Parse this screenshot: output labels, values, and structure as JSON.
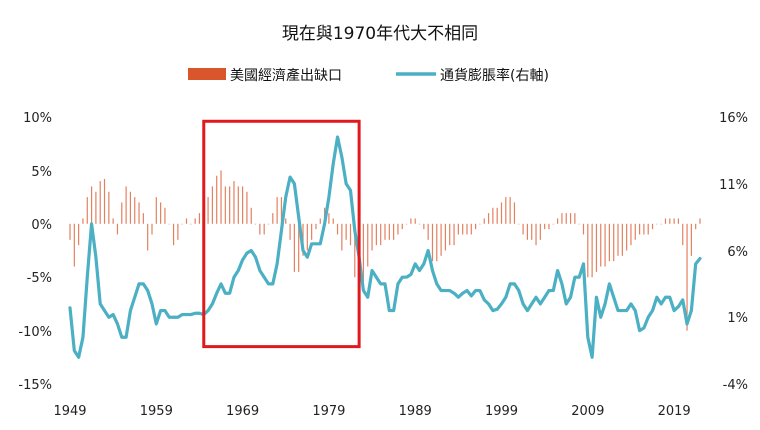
{
  "chart_data": {
    "type": "bar+line",
    "title": "現在與1970年代大不相同",
    "legend": [
      {
        "name": "美國經濟產出缺口",
        "mark": "bar",
        "color": "#d9552b"
      },
      {
        "name": "通貨膨脹率(右軸)",
        "mark": "line",
        "color": "#4bb0c4"
      }
    ],
    "legend_position": "top-center",
    "grid": false,
    "left_axis": {
      "ylim": [
        -15,
        10
      ],
      "ticks": [
        "10%",
        "5%",
        "0%",
        "-5%",
        "-10%",
        "-15%"
      ],
      "tick_values": [
        10,
        5,
        0,
        -5,
        -10,
        -15
      ]
    },
    "right_axis": {
      "ylim": [
        -4,
        16
      ],
      "ticks": [
        "16%",
        "11%",
        "6%",
        "1%",
        "-4%"
      ],
      "tick_values": [
        16,
        11,
        6,
        1,
        -4
      ]
    },
    "x_axis": {
      "range": [
        1949,
        2022
      ],
      "ticks": [
        "1949",
        "1959",
        "1969",
        "1979",
        "1989",
        "1999",
        "2009",
        "2019"
      ],
      "tick_values": [
        1949,
        1959,
        1969,
        1979,
        1989,
        1999,
        2009,
        2019
      ]
    },
    "highlight_box": {
      "x_range": [
        1964.5,
        1982.5
      ],
      "y_range_left": [
        -11.5,
        9.6
      ],
      "color": "#e0191e"
    },
    "series": [
      {
        "name": "美國經濟產出缺口",
        "type": "bar",
        "axis": "left",
        "points": [
          [
            1949.0,
            -1.5
          ],
          [
            1949.5,
            -4.0
          ],
          [
            1950.0,
            -2.0
          ],
          [
            1950.5,
            0.5
          ],
          [
            1951.0,
            2.5
          ],
          [
            1951.5,
            3.5
          ],
          [
            1952.0,
            3.0
          ],
          [
            1952.5,
            4.0
          ],
          [
            1953.0,
            4.2
          ],
          [
            1953.5,
            3.0
          ],
          [
            1954.0,
            0.5
          ],
          [
            1954.5,
            -1.0
          ],
          [
            1955.0,
            2.0
          ],
          [
            1955.5,
            3.5
          ],
          [
            1956.0,
            3.0
          ],
          [
            1956.5,
            2.5
          ],
          [
            1957.0,
            2.0
          ],
          [
            1957.5,
            1.0
          ],
          [
            1958.0,
            -2.5
          ],
          [
            1958.5,
            -1.0
          ],
          [
            1959.0,
            2.5
          ],
          [
            1959.5,
            2.0
          ],
          [
            1960.0,
            1.5
          ],
          [
            1960.5,
            0.0
          ],
          [
            1961.0,
            -2.0
          ],
          [
            1961.5,
            -1.5
          ],
          [
            1962.0,
            0.0
          ],
          [
            1962.5,
            0.5
          ],
          [
            1963.0,
            0.0
          ],
          [
            1963.5,
            0.5
          ],
          [
            1964.0,
            1.0
          ],
          [
            1964.5,
            1.5
          ],
          [
            1965.0,
            2.5
          ],
          [
            1965.5,
            3.5
          ],
          [
            1966.0,
            4.5
          ],
          [
            1966.5,
            5.0
          ],
          [
            1967.0,
            3.5
          ],
          [
            1967.5,
            3.5
          ],
          [
            1968.0,
            4.0
          ],
          [
            1968.5,
            3.5
          ],
          [
            1969.0,
            3.5
          ],
          [
            1969.5,
            3.0
          ],
          [
            1970.0,
            1.5
          ],
          [
            1970.5,
            0.0
          ],
          [
            1971.0,
            -1.0
          ],
          [
            1971.5,
            -1.0
          ],
          [
            1972.0,
            0.0
          ],
          [
            1972.5,
            1.0
          ],
          [
            1973.0,
            2.5
          ],
          [
            1973.5,
            2.5
          ],
          [
            1974.0,
            0.5
          ],
          [
            1974.5,
            -1.5
          ],
          [
            1975.0,
            -4.5
          ],
          [
            1975.5,
            -4.5
          ],
          [
            1976.0,
            -3.0
          ],
          [
            1976.5,
            -2.5
          ],
          [
            1977.0,
            -1.5
          ],
          [
            1977.5,
            -0.5
          ],
          [
            1978.0,
            0.5
          ],
          [
            1978.5,
            1.5
          ],
          [
            1979.0,
            1.0
          ],
          [
            1979.5,
            0.5
          ],
          [
            1980.0,
            -1.0
          ],
          [
            1980.5,
            -2.5
          ],
          [
            1981.0,
            -1.5
          ],
          [
            1981.5,
            -2.0
          ],
          [
            1982.0,
            -5.0
          ],
          [
            1982.5,
            -6.5
          ],
          [
            1983.0,
            -5.5
          ],
          [
            1983.5,
            -4.0
          ],
          [
            1984.0,
            -2.5
          ],
          [
            1984.5,
            -2.0
          ],
          [
            1985.0,
            -2.0
          ],
          [
            1985.5,
            -1.5
          ],
          [
            1986.0,
            -1.5
          ],
          [
            1986.5,
            -1.5
          ],
          [
            1987.0,
            -1.0
          ],
          [
            1987.5,
            -0.5
          ],
          [
            1988.0,
            0.0
          ],
          [
            1988.5,
            0.5
          ],
          [
            1989.0,
            0.5
          ],
          [
            1989.5,
            0.0
          ],
          [
            1990.0,
            -0.5
          ],
          [
            1990.5,
            -1.5
          ],
          [
            1991.0,
            -3.5
          ],
          [
            1991.5,
            -3.5
          ],
          [
            1992.0,
            -3.0
          ],
          [
            1992.5,
            -2.5
          ],
          [
            1993.0,
            -2.0
          ],
          [
            1993.5,
            -2.0
          ],
          [
            1994.0,
            -1.0
          ],
          [
            1994.5,
            -1.0
          ],
          [
            1995.0,
            -1.0
          ],
          [
            1995.5,
            -1.0
          ],
          [
            1996.0,
            -0.5
          ],
          [
            1996.5,
            0.0
          ],
          [
            1997.0,
            0.5
          ],
          [
            1997.5,
            1.0
          ],
          [
            1998.0,
            1.5
          ],
          [
            1998.5,
            1.5
          ],
          [
            1999.0,
            2.0
          ],
          [
            1999.5,
            2.5
          ],
          [
            2000.0,
            2.5
          ],
          [
            2000.5,
            2.0
          ],
          [
            2001.0,
            0.0
          ],
          [
            2001.5,
            -1.0
          ],
          [
            2002.0,
            -1.5
          ],
          [
            2002.5,
            -1.5
          ],
          [
            2003.0,
            -2.0
          ],
          [
            2003.5,
            -1.5
          ],
          [
            2004.0,
            -0.5
          ],
          [
            2004.5,
            -0.5
          ],
          [
            2005.0,
            0.0
          ],
          [
            2005.5,
            0.5
          ],
          [
            2006.0,
            1.0
          ],
          [
            2006.5,
            1.0
          ],
          [
            2007.0,
            1.0
          ],
          [
            2007.5,
            1.0
          ],
          [
            2008.0,
            0.0
          ],
          [
            2008.5,
            -1.0
          ],
          [
            2009.0,
            -5.0
          ],
          [
            2009.5,
            -5.0
          ],
          [
            2010.0,
            -4.5
          ],
          [
            2010.5,
            -4.0
          ],
          [
            2011.0,
            -4.0
          ],
          [
            2011.5,
            -3.5
          ],
          [
            2012.0,
            -3.5
          ],
          [
            2012.5,
            -3.0
          ],
          [
            2013.0,
            -3.0
          ],
          [
            2013.5,
            -2.5
          ],
          [
            2014.0,
            -2.0
          ],
          [
            2014.5,
            -1.5
          ],
          [
            2015.0,
            -1.0
          ],
          [
            2015.5,
            -1.0
          ],
          [
            2016.0,
            -1.0
          ],
          [
            2016.5,
            -0.5
          ],
          [
            2017.0,
            0.0
          ],
          [
            2017.5,
            0.0
          ],
          [
            2018.0,
            0.5
          ],
          [
            2018.5,
            0.5
          ],
          [
            2019.0,
            0.5
          ],
          [
            2019.5,
            0.5
          ],
          [
            2020.0,
            -2.0
          ],
          [
            2020.5,
            -10.0
          ],
          [
            2021.0,
            -3.0
          ],
          [
            2021.5,
            -0.5
          ],
          [
            2022.0,
            0.5
          ]
        ]
      },
      {
        "name": "通貨膨脹率(右軸)",
        "type": "line",
        "axis": "right",
        "points": [
          [
            1949.0,
            1.7
          ],
          [
            1949.5,
            -1.5
          ],
          [
            1950.0,
            -2.0
          ],
          [
            1950.5,
            -0.5
          ],
          [
            1951.0,
            4.0
          ],
          [
            1951.5,
            8.0
          ],
          [
            1952.0,
            5.5
          ],
          [
            1952.5,
            2.0
          ],
          [
            1953.0,
            1.5
          ],
          [
            1953.5,
            1.0
          ],
          [
            1954.0,
            1.2
          ],
          [
            1954.5,
            0.5
          ],
          [
            1955.0,
            -0.5
          ],
          [
            1955.5,
            -0.5
          ],
          [
            1956.0,
            1.5
          ],
          [
            1956.5,
            2.5
          ],
          [
            1957.0,
            3.5
          ],
          [
            1957.5,
            3.5
          ],
          [
            1958.0,
            3.0
          ],
          [
            1958.5,
            2.0
          ],
          [
            1959.0,
            0.5
          ],
          [
            1959.5,
            1.5
          ],
          [
            1960.0,
            1.5
          ],
          [
            1960.5,
            1.0
          ],
          [
            1961.0,
            1.0
          ],
          [
            1961.5,
            1.0
          ],
          [
            1962.0,
            1.2
          ],
          [
            1962.5,
            1.2
          ],
          [
            1963.0,
            1.2
          ],
          [
            1963.5,
            1.3
          ],
          [
            1964.0,
            1.3
          ],
          [
            1964.5,
            1.2
          ],
          [
            1965.0,
            1.5
          ],
          [
            1965.5,
            2.0
          ],
          [
            1966.0,
            2.8
          ],
          [
            1966.5,
            3.5
          ],
          [
            1967.0,
            2.8
          ],
          [
            1967.5,
            2.8
          ],
          [
            1968.0,
            4.0
          ],
          [
            1968.5,
            4.5
          ],
          [
            1969.0,
            5.3
          ],
          [
            1969.5,
            5.8
          ],
          [
            1970.0,
            6.0
          ],
          [
            1970.5,
            5.5
          ],
          [
            1971.0,
            4.5
          ],
          [
            1971.5,
            4.0
          ],
          [
            1972.0,
            3.5
          ],
          [
            1972.5,
            3.5
          ],
          [
            1973.0,
            5.0
          ],
          [
            1973.5,
            7.5
          ],
          [
            1974.0,
            10.0
          ],
          [
            1974.5,
            11.5
          ],
          [
            1975.0,
            11.0
          ],
          [
            1975.5,
            8.5
          ],
          [
            1976.0,
            6.0
          ],
          [
            1976.5,
            5.5
          ],
          [
            1977.0,
            6.5
          ],
          [
            1977.5,
            6.5
          ],
          [
            1978.0,
            6.5
          ],
          [
            1978.5,
            8.0
          ],
          [
            1979.0,
            10.0
          ],
          [
            1979.5,
            12.5
          ],
          [
            1980.0,
            14.5
          ],
          [
            1980.5,
            13.0
          ],
          [
            1981.0,
            11.0
          ],
          [
            1981.5,
            10.5
          ],
          [
            1982.0,
            7.5
          ],
          [
            1982.5,
            5.5
          ],
          [
            1983.0,
            3.0
          ],
          [
            1983.5,
            2.5
          ],
          [
            1984.0,
            4.5
          ],
          [
            1984.5,
            4.0
          ],
          [
            1985.0,
            3.5
          ],
          [
            1985.5,
            3.5
          ],
          [
            1986.0,
            1.5
          ],
          [
            1986.5,
            1.5
          ],
          [
            1987.0,
            3.5
          ],
          [
            1987.5,
            4.0
          ],
          [
            1988.0,
            4.0
          ],
          [
            1988.5,
            4.2
          ],
          [
            1989.0,
            5.0
          ],
          [
            1989.5,
            4.5
          ],
          [
            1990.0,
            5.0
          ],
          [
            1990.5,
            6.0
          ],
          [
            1991.0,
            4.5
          ],
          [
            1991.5,
            3.5
          ],
          [
            1992.0,
            3.0
          ],
          [
            1992.5,
            3.0
          ],
          [
            1993.0,
            3.0
          ],
          [
            1993.5,
            2.8
          ],
          [
            1994.0,
            2.5
          ],
          [
            1994.5,
            2.8
          ],
          [
            1995.0,
            3.0
          ],
          [
            1995.5,
            2.6
          ],
          [
            1996.0,
            3.0
          ],
          [
            1996.5,
            3.0
          ],
          [
            1997.0,
            2.3
          ],
          [
            1997.5,
            2.0
          ],
          [
            1998.0,
            1.5
          ],
          [
            1998.5,
            1.6
          ],
          [
            1999.0,
            2.0
          ],
          [
            1999.5,
            2.5
          ],
          [
            2000.0,
            3.5
          ],
          [
            2000.5,
            3.5
          ],
          [
            2001.0,
            3.0
          ],
          [
            2001.5,
            2.0
          ],
          [
            2002.0,
            1.5
          ],
          [
            2002.5,
            2.0
          ],
          [
            2003.0,
            2.5
          ],
          [
            2003.5,
            2.0
          ],
          [
            2004.0,
            2.5
          ],
          [
            2004.5,
            3.0
          ],
          [
            2005.0,
            3.0
          ],
          [
            2005.5,
            4.5
          ],
          [
            2006.0,
            3.5
          ],
          [
            2006.5,
            2.0
          ],
          [
            2007.0,
            2.5
          ],
          [
            2007.5,
            4.0
          ],
          [
            2008.0,
            4.0
          ],
          [
            2008.5,
            5.0
          ],
          [
            2009.0,
            -0.5
          ],
          [
            2009.5,
            -2.0
          ],
          [
            2010.0,
            2.5
          ],
          [
            2010.5,
            1.0
          ],
          [
            2011.0,
            2.0
          ],
          [
            2011.5,
            3.5
          ],
          [
            2012.0,
            2.5
          ],
          [
            2012.5,
            1.5
          ],
          [
            2013.0,
            1.5
          ],
          [
            2013.5,
            1.5
          ],
          [
            2014.0,
            2.0
          ],
          [
            2014.5,
            1.5
          ],
          [
            2015.0,
            0.0
          ],
          [
            2015.5,
            0.2
          ],
          [
            2016.0,
            1.0
          ],
          [
            2016.5,
            1.5
          ],
          [
            2017.0,
            2.5
          ],
          [
            2017.5,
            2.0
          ],
          [
            2018.0,
            2.5
          ],
          [
            2018.5,
            2.5
          ],
          [
            2019.0,
            1.5
          ],
          [
            2019.5,
            1.8
          ],
          [
            2020.0,
            2.3
          ],
          [
            2020.5,
            0.5
          ],
          [
            2021.0,
            1.5
          ],
          [
            2021.5,
            5.0
          ],
          [
            2022.0,
            5.4
          ]
        ]
      }
    ]
  }
}
